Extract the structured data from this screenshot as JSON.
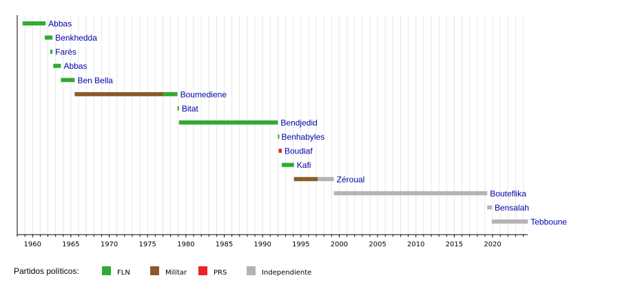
{
  "chart_data": {
    "type": "timeline",
    "title": "",
    "xlim": [
      1958,
      2024.6
    ],
    "grid": "vertical-yearly",
    "xticks": [
      1960,
      1965,
      1970,
      1975,
      1980,
      1985,
      1990,
      1995,
      2000,
      2005,
      2010,
      2015,
      2020
    ],
    "parties": {
      "FLN": "#33aa33",
      "Militar": "#8b5a2b",
      "PRS": "#ee2222",
      "Independiente": "#b4b4b4"
    },
    "rows": [
      {
        "name": "Abbas",
        "segments": [
          {
            "start": 1958.7,
            "end": 1961.7,
            "party": "FLN"
          }
        ]
      },
      {
        "name": "Benkhedda",
        "segments": [
          {
            "start": 1961.6,
            "end": 1962.6,
            "party": "FLN"
          }
        ]
      },
      {
        "name": "Farès",
        "segments": [
          {
            "start": 1962.3,
            "end": 1962.6,
            "party": "FLN"
          }
        ]
      },
      {
        "name": "Abbas",
        "segments": [
          {
            "start": 1962.7,
            "end": 1963.7,
            "party": "FLN"
          }
        ]
      },
      {
        "name": "Ben Bella",
        "segments": [
          {
            "start": 1963.7,
            "end": 1965.5,
            "party": "FLN"
          }
        ]
      },
      {
        "name": "Boumediene",
        "segments": [
          {
            "start": 1965.5,
            "end": 1977,
            "party": "Militar"
          },
          {
            "start": 1977,
            "end": 1978.9,
            "party": "FLN"
          }
        ]
      },
      {
        "name": "Bitat",
        "segments": [
          {
            "start": 1978.9,
            "end": 1979.1,
            "party": "FLN"
          }
        ]
      },
      {
        "name": "Bendjedid",
        "segments": [
          {
            "start": 1979.1,
            "end": 1992,
            "party": "FLN"
          }
        ]
      },
      {
        "name": "Benhabyles",
        "segments": [
          {
            "start": 1992,
            "end": 1992.1,
            "party": "FLN"
          }
        ]
      },
      {
        "name": "Boudiaf",
        "segments": [
          {
            "start": 1992.1,
            "end": 1992.5,
            "party": "PRS"
          }
        ]
      },
      {
        "name": "Kafi",
        "segments": [
          {
            "start": 1992.5,
            "end": 1994.1,
            "party": "FLN"
          }
        ]
      },
      {
        "name": "Zéroual",
        "segments": [
          {
            "start": 1994.1,
            "end": 1997.2,
            "party": "Militar"
          },
          {
            "start": 1997.2,
            "end": 1999.3,
            "party": "Independiente"
          }
        ]
      },
      {
        "name": "Bouteflika",
        "segments": [
          {
            "start": 1999.3,
            "end": 2019.3,
            "party": "Independiente"
          }
        ]
      },
      {
        "name": "Bensalah",
        "segments": [
          {
            "start": 2019.3,
            "end": 2019.9,
            "party": "Independiente"
          }
        ]
      },
      {
        "name": "Tebboune",
        "segments": [
          {
            "start": 2019.9,
            "end": 2024.6,
            "party": "Independiente"
          }
        ]
      }
    ],
    "legend": {
      "title": "Partidos políticos:",
      "items": [
        "FLN",
        "Militar",
        "PRS",
        "Independiente"
      ],
      "placement": "bottom-left"
    }
  }
}
